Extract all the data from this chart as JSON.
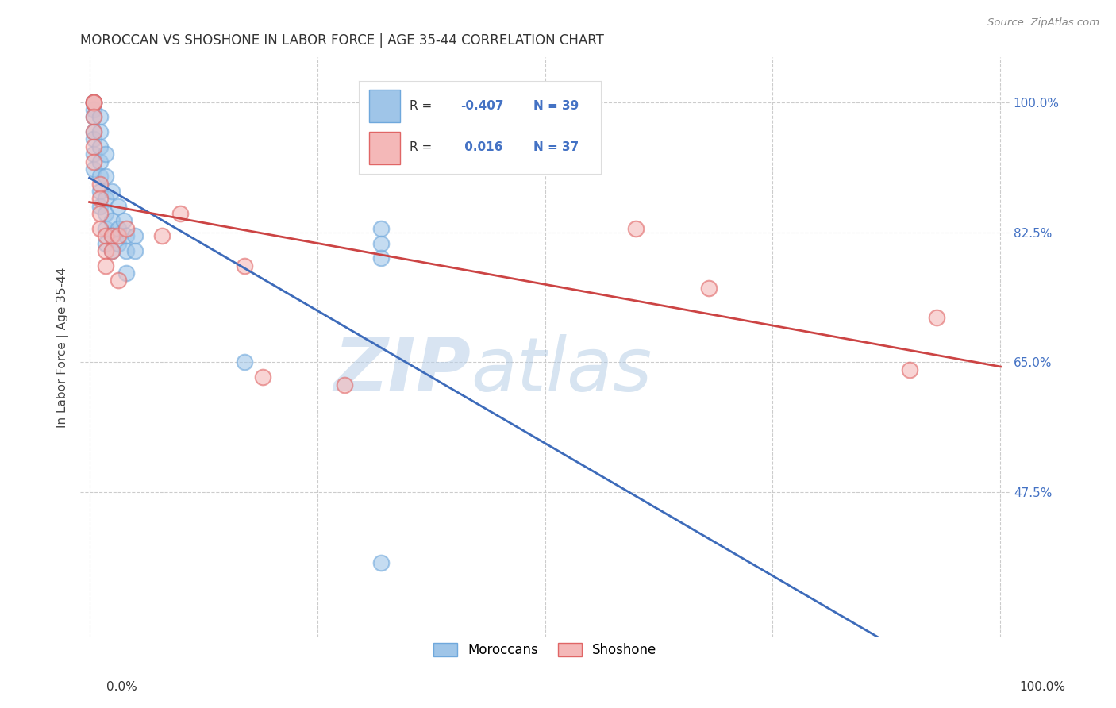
{
  "title": "MOROCCAN VS SHOSHONE IN LABOR FORCE | AGE 35-44 CORRELATION CHART",
  "source": "Source: ZipAtlas.com",
  "ylabel": "In Labor Force | Age 35-44",
  "ytick_values": [
    1.0,
    0.825,
    0.65,
    0.475
  ],
  "xlim": [
    -0.01,
    1.01
  ],
  "ylim": [
    0.28,
    1.06
  ],
  "moroccan_color": "#9fc5e8",
  "shoshone_color": "#f4b8b8",
  "moroccan_edge": "#6fa8dc",
  "shoshone_edge": "#e06666",
  "trend_blue": "#3d6bba",
  "trend_pink": "#cc4444",
  "watermark_zip": "ZIP",
  "watermark_atlas": "atlas",
  "moroccan_x": [
    0.005,
    0.005,
    0.005,
    0.005,
    0.005,
    0.005,
    0.005,
    0.005,
    0.012,
    0.012,
    0.012,
    0.012,
    0.012,
    0.012,
    0.012,
    0.018,
    0.018,
    0.018,
    0.018,
    0.018,
    0.018,
    0.025,
    0.025,
    0.025,
    0.025,
    0.032,
    0.032,
    0.032,
    0.038,
    0.04,
    0.04,
    0.04,
    0.05,
    0.05,
    0.17,
    0.32,
    0.32,
    0.32,
    0.32
  ],
  "moroccan_y": [
    1.0,
    1.0,
    0.99,
    0.98,
    0.96,
    0.95,
    0.93,
    0.91,
    0.98,
    0.96,
    0.94,
    0.92,
    0.9,
    0.88,
    0.86,
    0.93,
    0.9,
    0.87,
    0.85,
    0.83,
    0.81,
    0.88,
    0.84,
    0.82,
    0.8,
    0.86,
    0.83,
    0.81,
    0.84,
    0.82,
    0.8,
    0.77,
    0.82,
    0.8,
    0.65,
    0.83,
    0.81,
    0.79,
    0.38
  ],
  "shoshone_x": [
    0.005,
    0.005,
    0.005,
    0.005,
    0.005,
    0.005,
    0.005,
    0.012,
    0.012,
    0.012,
    0.012,
    0.018,
    0.018,
    0.018,
    0.025,
    0.025,
    0.032,
    0.032,
    0.04,
    0.08,
    0.1,
    0.17,
    0.19,
    0.28,
    0.6,
    0.68,
    0.9,
    0.93
  ],
  "shoshone_y": [
    1.0,
    1.0,
    1.0,
    0.98,
    0.96,
    0.94,
    0.92,
    0.89,
    0.87,
    0.85,
    0.83,
    0.82,
    0.8,
    0.78,
    0.82,
    0.8,
    0.82,
    0.76,
    0.83,
    0.82,
    0.85,
    0.78,
    0.63,
    0.62,
    0.83,
    0.75,
    0.64,
    0.71
  ],
  "dashed_color": "#bbbbbb"
}
